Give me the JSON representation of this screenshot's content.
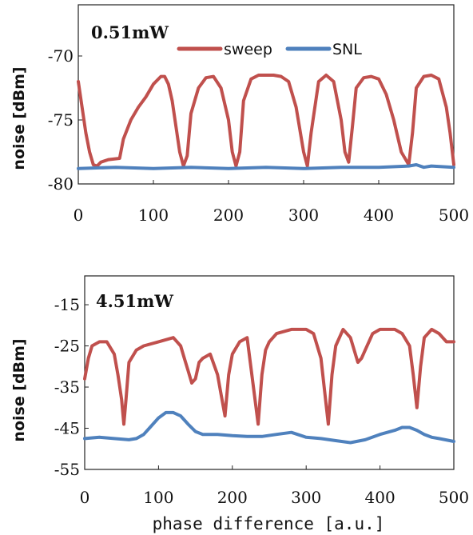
{
  "chart_data": [
    {
      "type": "line",
      "annotation": "0.51mW",
      "xlabel": "",
      "ylabel": "noise [dBm]",
      "xlim": [
        0,
        500
      ],
      "ylim": [
        -80,
        -66
      ],
      "xticks": [
        "0",
        "100",
        "200",
        "300",
        "400",
        "500"
      ],
      "yticks": [
        "-70",
        "-75",
        "-80"
      ],
      "ytick_values": [
        -70,
        -75,
        -80
      ],
      "grid": false,
      "legend": "top-right",
      "series": [
        {
          "name": "sweep",
          "color": "#c0504d",
          "x": [
            0,
            5,
            10,
            15,
            20,
            25,
            30,
            40,
            55,
            60,
            70,
            80,
            90,
            100,
            110,
            115,
            120,
            125,
            130,
            135,
            140,
            145,
            150,
            160,
            170,
            180,
            190,
            200,
            205,
            210,
            215,
            220,
            230,
            240,
            250,
            260,
            270,
            280,
            290,
            300,
            305,
            310,
            320,
            330,
            340,
            350,
            355,
            360,
            365,
            370,
            380,
            390,
            400,
            410,
            420,
            430,
            440,
            445,
            450,
            460,
            470,
            480,
            490,
            495,
            500
          ],
          "y": [
            -72.0,
            -74.0,
            -76.0,
            -77.5,
            -78.5,
            -78.6,
            -78.3,
            -78.1,
            -78.0,
            -76.5,
            -75.0,
            -74.0,
            -73.2,
            -72.2,
            -71.6,
            -71.6,
            -72.2,
            -73.5,
            -75.5,
            -77.5,
            -78.6,
            -77.8,
            -74.5,
            -72.5,
            -71.7,
            -71.6,
            -72.5,
            -75.0,
            -77.5,
            -78.6,
            -77.5,
            -73.5,
            -71.8,
            -71.5,
            -71.5,
            -71.5,
            -71.6,
            -72.0,
            -74.0,
            -77.5,
            -78.6,
            -76.0,
            -72.0,
            -71.5,
            -72.0,
            -75.0,
            -77.5,
            -78.3,
            -75.5,
            -72.5,
            -71.7,
            -71.6,
            -71.8,
            -73.0,
            -75.0,
            -77.5,
            -78.5,
            -76.0,
            -72.5,
            -71.6,
            -71.5,
            -71.8,
            -74.0,
            -76.0,
            -78.5
          ]
        },
        {
          "name": "SNL",
          "color": "#4f81bd",
          "x": [
            0,
            50,
            100,
            150,
            200,
            250,
            300,
            350,
            400,
            440,
            450,
            460,
            470,
            500
          ],
          "y": [
            -78.8,
            -78.7,
            -78.8,
            -78.7,
            -78.8,
            -78.7,
            -78.8,
            -78.7,
            -78.7,
            -78.6,
            -78.5,
            -78.7,
            -78.6,
            -78.7
          ]
        }
      ]
    },
    {
      "type": "line",
      "annotation": "4.51mW",
      "xlabel": "phase difference [a.u.]",
      "ylabel": "noise [dBm]",
      "xlim": [
        0,
        500
      ],
      "ylim": [
        -55,
        -8
      ],
      "xticks": [
        "0",
        "100",
        "200",
        "300",
        "400",
        "500"
      ],
      "yticks": [
        "-15",
        "-25",
        "-35",
        "-45",
        "-55"
      ],
      "ytick_values": [
        -15,
        -25,
        -35,
        -45,
        -55
      ],
      "grid": false,
      "legend": "none",
      "series": [
        {
          "name": "sweep",
          "color": "#c0504d",
          "x": [
            0,
            5,
            10,
            20,
            30,
            40,
            45,
            50,
            53,
            56,
            60,
            70,
            80,
            100,
            120,
            130,
            135,
            140,
            145,
            150,
            155,
            160,
            170,
            180,
            185,
            190,
            195,
            200,
            210,
            220,
            225,
            230,
            235,
            240,
            245,
            250,
            260,
            280,
            300,
            310,
            320,
            325,
            330,
            335,
            340,
            350,
            360,
            370,
            375,
            380,
            390,
            400,
            410,
            420,
            430,
            440,
            445,
            450,
            455,
            460,
            470,
            480,
            490,
            500
          ],
          "y": [
            -33,
            -28,
            -25,
            -24,
            -24,
            -27,
            -32,
            -38,
            -44,
            -38,
            -29,
            -26,
            -25,
            -24,
            -23,
            -25,
            -28,
            -31,
            -34,
            -33,
            -29,
            -28,
            -27,
            -32,
            -37,
            -42,
            -32,
            -27,
            -24,
            -23,
            -30,
            -37,
            -44,
            -32,
            -26,
            -24,
            -22,
            -21,
            -21,
            -22,
            -28,
            -36,
            -44,
            -32,
            -25,
            -21,
            -23,
            -29,
            -28,
            -26,
            -22,
            -21,
            -21,
            -21,
            -22,
            -25,
            -32,
            -40,
            -30,
            -23,
            -21,
            -22,
            -24,
            -24
          ]
        },
        {
          "name": "SNL",
          "color": "#4f81bd",
          "x": [
            0,
            20,
            40,
            60,
            70,
            80,
            90,
            100,
            110,
            120,
            130,
            140,
            150,
            160,
            180,
            200,
            220,
            240,
            260,
            280,
            300,
            320,
            340,
            360,
            380,
            400,
            420,
            430,
            440,
            450,
            460,
            470,
            480,
            500
          ],
          "y": [
            -47.5,
            -47.2,
            -47.5,
            -47.8,
            -47.5,
            -46.5,
            -44.5,
            -42.5,
            -41.2,
            -41.2,
            -42.0,
            -44.0,
            -45.8,
            -46.5,
            -46.5,
            -46.8,
            -47.0,
            -47.0,
            -46.5,
            -46.0,
            -47.2,
            -47.5,
            -48.0,
            -48.5,
            -47.8,
            -46.5,
            -45.5,
            -44.8,
            -44.8,
            -45.5,
            -46.5,
            -47.2,
            -47.5,
            -48.2
          ]
        }
      ]
    }
  ]
}
